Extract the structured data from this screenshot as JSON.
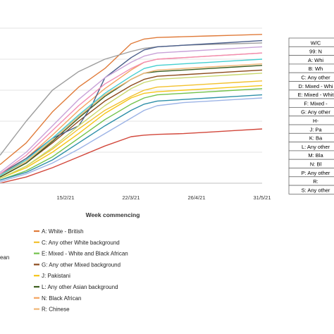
{
  "chart_data": {
    "type": "line",
    "xlabel": "Week commencing",
    "ylabel": "",
    "x_ticks": [
      "15/2/21",
      "22/3/21",
      "26/4/21",
      "31/5/21"
    ],
    "x_tick_weeks": [
      5,
      10,
      15,
      20
    ],
    "xlim": [
      0,
      20
    ],
    "ylim": [
      0,
      100
    ],
    "grid": "horizontal",
    "series": [
      {
        "name": "A: White - British",
        "color": "#E07B3A",
        "x": [
          0,
          2,
          4,
          6,
          8,
          9,
          10,
          11,
          12,
          14,
          16,
          18,
          20
        ],
        "y": [
          12,
          26,
          46,
          62,
          74,
          82,
          90,
          93,
          94,
          94.5,
          95,
          95.5,
          96
        ]
      },
      {
        "name": "C: Any other White background",
        "color": "#F2C12E",
        "x": [
          0,
          2,
          4,
          6,
          8,
          10,
          11,
          12,
          14,
          16,
          18,
          20
        ],
        "y": [
          3,
          11,
          22,
          35,
          47,
          56,
          60,
          62,
          63,
          64,
          65,
          66
        ]
      },
      {
        "name": "E: Mixed - White and Black African",
        "color": "#72C24B",
        "x": [
          0,
          2,
          4,
          6,
          8,
          10,
          11,
          12,
          14,
          16,
          18,
          20
        ],
        "y": [
          2,
          8,
          17,
          29,
          41,
          51,
          55,
          57,
          58,
          59,
          60,
          61
        ]
      },
      {
        "name": "G: Any other Mixed background",
        "color": "#8B4A1C",
        "x": [
          0,
          2,
          4,
          6,
          8,
          10,
          11,
          12,
          14,
          16,
          18,
          20
        ],
        "y": [
          4,
          13,
          26,
          40,
          53,
          63,
          67,
          69,
          70,
          71,
          72,
          73
        ]
      },
      {
        "name": "J: Pakistani",
        "color": "#F5C518",
        "x": [
          0,
          2,
          4,
          6,
          8,
          10,
          11,
          12,
          14,
          16,
          18,
          20
        ],
        "y": [
          3,
          10,
          20,
          32,
          45,
          55,
          58,
          59,
          60,
          61,
          62,
          63
        ]
      },
      {
        "name": "L: Any other Asian background",
        "color": "#3D5E1E",
        "x": [
          0,
          2,
          4,
          6,
          8,
          10,
          11,
          12,
          14,
          16,
          18,
          20
        ],
        "y": [
          4,
          13,
          27,
          42,
          56,
          67,
          71,
          72,
          73,
          74,
          75,
          76
        ]
      },
      {
        "name": "N: Black African",
        "color": "#F4A460",
        "x": [
          0,
          2,
          4,
          6,
          8,
          10,
          11,
          12,
          14,
          16,
          18,
          20
        ],
        "y": [
          5,
          16,
          31,
          47,
          61,
          73,
          78,
          80,
          81,
          82,
          83,
          84
        ]
      },
      {
        "name": "R: Chinese",
        "color": "#F0B676",
        "x": [
          0,
          2,
          4,
          6,
          8,
          10,
          11,
          12,
          14,
          16,
          18,
          20
        ],
        "y": [
          5,
          14,
          28,
          43,
          57,
          67,
          71,
          73,
          74,
          75,
          76,
          77
        ]
      },
      {
        "name": "",
        "color": "#9E9E9E",
        "x": [
          0,
          2,
          4,
          6,
          8,
          10,
          11,
          12,
          14,
          16,
          18,
          20
        ],
        "y": [
          18,
          40,
          60,
          72,
          80,
          85,
          87,
          88,
          89,
          89.5,
          90,
          90.5
        ]
      },
      {
        "name": "",
        "color": "#4A5E8A",
        "x": [
          0,
          2,
          4,
          6,
          7,
          8,
          10,
          11,
          12,
          14,
          16,
          18,
          20
        ],
        "y": [
          6,
          16,
          29,
          37,
          50,
          68,
          81,
          86,
          88,
          89,
          90,
          91,
          92
        ]
      },
      {
        "name": "",
        "color": "#C8A2D8",
        "x": [
          0,
          2,
          4,
          6,
          8,
          10,
          11,
          12,
          14,
          16,
          18,
          20
        ],
        "y": [
          7,
          20,
          37,
          54,
          68,
          78,
          82,
          84,
          85,
          86,
          87,
          88
        ]
      },
      {
        "name": "",
        "color": "#F28CB4",
        "x": [
          0,
          2,
          4,
          6,
          8,
          10,
          11,
          12,
          14,
          16,
          18,
          20
        ],
        "y": [
          6,
          18,
          34,
          50,
          64,
          74,
          78,
          80,
          81,
          82,
          83,
          84
        ]
      },
      {
        "name": "",
        "color": "#45CFD0",
        "x": [
          0,
          2,
          4,
          6,
          8,
          10,
          11,
          12,
          14,
          16,
          18,
          20
        ],
        "y": [
          5,
          15,
          29,
          44,
          58,
          69,
          74,
          76,
          77,
          78,
          79,
          80
        ]
      },
      {
        "name": "",
        "color": "#C9D86E",
        "x": [
          0,
          2,
          4,
          6,
          8,
          10,
          11,
          12,
          14,
          16,
          18,
          20
        ],
        "y": [
          3,
          11,
          23,
          37,
          50,
          61,
          65,
          67,
          68,
          69,
          70,
          71
        ]
      },
      {
        "name": "",
        "color": "#2E8FA8",
        "x": [
          0,
          2,
          4,
          6,
          8,
          10,
          11,
          12,
          14,
          16,
          18,
          20
        ],
        "y": [
          2,
          7,
          15,
          26,
          37,
          47,
          51,
          53,
          54,
          55,
          56,
          57
        ]
      },
      {
        "name": "",
        "color": "#9DB4E6",
        "x": [
          0,
          2,
          4,
          6,
          8,
          10,
          11,
          12,
          14,
          16,
          18,
          20
        ],
        "y": [
          1,
          6,
          13,
          22,
          32,
          42,
          47,
          50,
          52,
          53,
          54,
          55
        ]
      },
      {
        "name": "",
        "color": "#D2473B",
        "x": [
          0,
          2,
          4,
          6,
          8,
          10,
          11,
          12,
          14,
          16,
          18,
          20
        ],
        "y": [
          0,
          4,
          10,
          17,
          24,
          30,
          31,
          31.5,
          32,
          33,
          34,
          35
        ]
      }
    ],
    "legend_items": [
      {
        "label": "A: White - British",
        "color": "#E07B3A"
      },
      {
        "label": "C: Any other White background",
        "color": "#F2C12E"
      },
      {
        "label": "E: Mixed - White and Black African",
        "color": "#72C24B"
      },
      {
        "label": "G: Any other Mixed background",
        "color": "#8B4A1C"
      },
      {
        "label": "J: Pakistani",
        "color": "#F5C518"
      },
      {
        "label": "L: Any other Asian background",
        "color": "#3D5E1E"
      },
      {
        "label": "N: Black African",
        "color": "#F4A460"
      },
      {
        "label": "R: Chinese",
        "color": "#F0B676"
      }
    ],
    "left_legend_fragment": "ean",
    "table_rows": [
      "W/C",
      "99: N",
      "A: Whi",
      "B: Wh",
      "C: Any other",
      "D: Mixed - Whi",
      "E: Mixed - Whit",
      "F: Mixed -",
      "G: Any other",
      "H-",
      "J: Pa",
      "K: Ba",
      "L: Any other",
      "M: Bla",
      "N: Bl",
      "P: Any other",
      "R:",
      "S: Any other"
    ]
  }
}
